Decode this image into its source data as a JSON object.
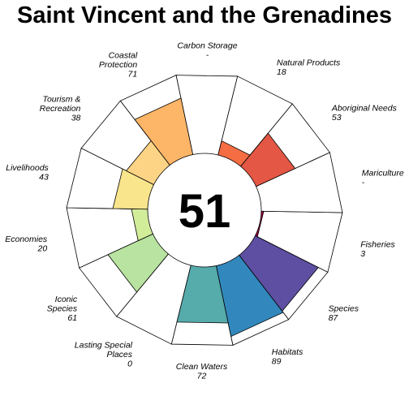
{
  "chart_data": {
    "type": "flower",
    "title": "Saint Vincent and the Grenadines",
    "center_value": "51",
    "petals": [
      {
        "name": "Fisheries",
        "value": 3,
        "display": "3",
        "color": "#9E0142"
      },
      {
        "name": "Species",
        "value": 87,
        "display": "87",
        "color": "#5E4FA2"
      },
      {
        "name": "Habitats",
        "value": 89,
        "display": "89",
        "color": "#3288BD"
      },
      {
        "name": "Clean Waters",
        "value": 72,
        "display": "72",
        "color": "#56ABAB"
      },
      {
        "name": "Lasting Special Places",
        "value": 0,
        "display": "0",
        "color": "#8FD2A4"
      },
      {
        "name": "Iconic Species",
        "value": 61,
        "display": "61",
        "color": "#B8E3A0"
      },
      {
        "name": "Economies",
        "value": 20,
        "display": "20",
        "color": "#D2ED9A"
      },
      {
        "name": "Livelihoods",
        "value": 43,
        "display": "43",
        "color": "#F9E58C"
      },
      {
        "name": "Tourism & Recreation",
        "value": 38,
        "display": "38",
        "color": "#FDD485"
      },
      {
        "name": "Coastal Protection",
        "value": 71,
        "display": "71",
        "color": "#FDB567"
      },
      {
        "name": "Carbon Storage",
        "value": null,
        "display": "-",
        "color": "#F98E52"
      },
      {
        "name": "Natural Products",
        "value": 18,
        "display": "18",
        "color": "#F46D43"
      },
      {
        "name": "Aboriginal Needs",
        "value": 53,
        "display": "53",
        "color": "#E35744"
      },
      {
        "name": "Mariculture",
        "value": null,
        "display": "-",
        "color": "#D53E4F"
      }
    ]
  }
}
